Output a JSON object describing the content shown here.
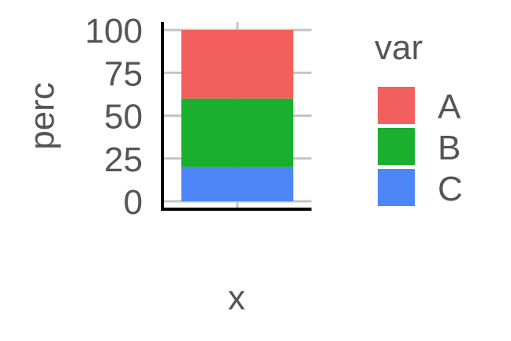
{
  "chart_data": {
    "type": "bar",
    "stacked": true,
    "categories": [
      ""
    ],
    "series": [
      {
        "name": "C",
        "values": [
          20
        ],
        "color": "#4F86F7"
      },
      {
        "name": "B",
        "values": [
          40
        ],
        "color": "#1AAF2E"
      },
      {
        "name": "A",
        "values": [
          40
        ],
        "color": "#F25F5C"
      }
    ],
    "xlabel": "x",
    "ylabel": "perc",
    "ylim": [
      0,
      100
    ],
    "yticks": [
      0,
      25,
      50,
      75,
      100
    ],
    "grid": true,
    "legend": {
      "title": "var",
      "position": "right",
      "entries": [
        {
          "label": "A",
          "color": "#F25F5C"
        },
        {
          "label": "B",
          "color": "#1AAF2E"
        },
        {
          "label": "C",
          "color": "#4F86F7"
        }
      ]
    }
  }
}
